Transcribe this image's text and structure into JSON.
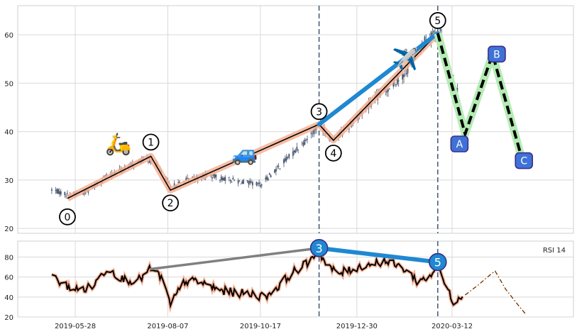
{
  "chart_data": [
    {
      "type": "candlestick",
      "panel": "price",
      "title": "",
      "xlabel": "",
      "ylabel": "",
      "ylim": [
        19,
        66
      ],
      "y_ticks": [
        20,
        30,
        40,
        50,
        60
      ],
      "grid": true,
      "price_series": {
        "name": "",
        "color": "#46556e",
        "anchors": [
          [
            "2019-05-10",
            28.0
          ],
          [
            "2019-05-22",
            27.0
          ],
          [
            "2019-06-05",
            27.5
          ],
          [
            "2019-06-20",
            30.5
          ],
          [
            "2019-07-10",
            33.0
          ],
          [
            "2019-07-22",
            34.5
          ],
          [
            "2019-07-30",
            33.0
          ],
          [
            "2019-08-09",
            28.5
          ],
          [
            "2019-08-22",
            30.0
          ],
          [
            "2019-09-05",
            31.0
          ],
          [
            "2019-09-25",
            30.0
          ],
          [
            "2019-10-17",
            29.0
          ],
          [
            "2019-11-05",
            34.0
          ],
          [
            "2019-11-20",
            38.0
          ],
          [
            "2019-12-01",
            41.5
          ],
          [
            "2019-12-10",
            38.5
          ],
          [
            "2019-12-20",
            40.0
          ],
          [
            "2020-01-10",
            46.0
          ],
          [
            "2020-02-05",
            52.0
          ],
          [
            "2020-02-19",
            58.5
          ],
          [
            "2020-03-03",
            61.0
          ],
          [
            "2020-03-08",
            52.0
          ],
          [
            "2020-03-15",
            50.0
          ],
          [
            "2020-03-22",
            39.0
          ]
        ]
      },
      "elliott_waves": [
        {
          "label": "0",
          "date": "2019-05-22",
          "price": 26.2
        },
        {
          "label": "1",
          "date": "2019-07-25",
          "price": 34.9
        },
        {
          "label": "2",
          "date": "2019-08-09",
          "price": 27.9
        },
        {
          "label": "3",
          "date": "2019-12-01",
          "price": 41.5
        },
        {
          "label": "4",
          "date": "2019-12-12",
          "price": 38.2
        },
        {
          "label": "5",
          "date": "2020-03-01",
          "price": 60.3
        }
      ],
      "corrective_waves": [
        {
          "label": "A",
          "date": "2020-03-22",
          "price": 39.5
        },
        {
          "label": "B",
          "date": "2020-04-12",
          "price": 56.0
        },
        {
          "label": "C",
          "date": "2020-05-05",
          "price": 34.0
        }
      ],
      "trend_line": [
        {
          "date": "2019-12-01",
          "price": 41.5
        },
        {
          "date": "2020-03-01",
          "price": 60.3
        }
      ],
      "event_dates": [
        "2019-12-01",
        "2020-03-01"
      ],
      "icons": [
        {
          "name": "scooter-icon",
          "glyph": "🛵",
          "date": "2019-06-30",
          "price": 36.0
        },
        {
          "name": "car-icon",
          "glyph": "🚙",
          "date": "2019-10-05",
          "price": 34.0
        },
        {
          "name": "airplane-icon",
          "glyph": "✈️",
          "date": "2020-02-05",
          "price": 53.5
        }
      ],
      "colors": {
        "impulse_band": "#f5b094",
        "impulse_line": "#000000",
        "corrective_band": "#b4ecb4",
        "corrective_line": "#000000",
        "trend_line": "#1f88d2",
        "event_line": "#4a5f7a",
        "label_fill": "#3f72d8",
        "label_border": "#3a2f86"
      }
    },
    {
      "type": "line",
      "panel": "indicator",
      "title": "RSI 14",
      "ylim": [
        20,
        96
      ],
      "y_ticks": [
        20,
        40,
        60,
        80
      ],
      "x_ticks": [
        "2019-05-28",
        "2019-08-07",
        "2019-10-17",
        "2019-12-30",
        "2020-03-12"
      ],
      "grid": true,
      "series": [
        {
          "name": "",
          "color": "#000000",
          "anchors": [
            [
              "2019-05-10",
              60
            ],
            [
              "2019-05-20",
              52
            ],
            [
              "2019-05-30",
              47
            ],
            [
              "2019-06-10",
              50
            ],
            [
              "2019-06-22",
              70
            ],
            [
              "2019-07-03",
              58
            ],
            [
              "2019-07-15",
              56
            ],
            [
              "2019-07-25",
              68
            ],
            [
              "2019-08-02",
              60
            ],
            [
              "2019-08-09",
              32
            ],
            [
              "2019-08-20",
              56
            ],
            [
              "2019-09-01",
              55
            ],
            [
              "2019-09-15",
              47
            ],
            [
              "2019-09-28",
              44
            ],
            [
              "2019-10-10",
              43
            ],
            [
              "2019-10-20",
              40
            ],
            [
              "2019-10-30",
              50
            ],
            [
              "2019-11-10",
              64
            ],
            [
              "2019-11-20",
              72
            ],
            [
              "2019-12-01",
              87
            ],
            [
              "2019-12-06",
              73
            ],
            [
              "2019-12-15",
              63
            ],
            [
              "2020-01-05",
              72
            ],
            [
              "2020-01-20",
              76
            ],
            [
              "2020-02-05",
              68
            ],
            [
              "2020-02-15",
              55
            ],
            [
              "2020-02-25",
              62
            ],
            [
              "2020-03-01",
              74
            ],
            [
              "2020-03-07",
              50
            ],
            [
              "2020-03-13",
              36
            ],
            [
              "2020-03-20",
              42
            ],
            [
              "2020-03-22",
              39
            ]
          ]
        },
        {
          "name": "",
          "color": "#e07a20",
          "style": "dashdot",
          "values": [
            [
              "2020-03-22",
              42
            ],
            [
              "2020-04-01",
              52
            ],
            [
              "2020-04-10",
              62
            ],
            [
              "2020-04-14",
              66
            ],
            [
              "2020-04-22",
              48
            ],
            [
              "2020-05-01",
              33
            ],
            [
              "2020-05-08",
              22
            ]
          ]
        }
      ],
      "divergence_lines": [
        {
          "color": "#808080",
          "points": [
            [
              "2019-07-25",
              68
            ],
            [
              "2019-12-01",
              89
            ]
          ]
        },
        {
          "color": "#1f88d2",
          "points": [
            [
              "2019-12-01",
              89
            ],
            [
              "2020-03-01",
              75
            ]
          ]
        }
      ],
      "wave_markers": [
        {
          "label": "3",
          "date": "2019-12-01",
          "value": 89
        },
        {
          "label": "5",
          "date": "2020-03-01",
          "value": 75
        }
      ]
    }
  ]
}
